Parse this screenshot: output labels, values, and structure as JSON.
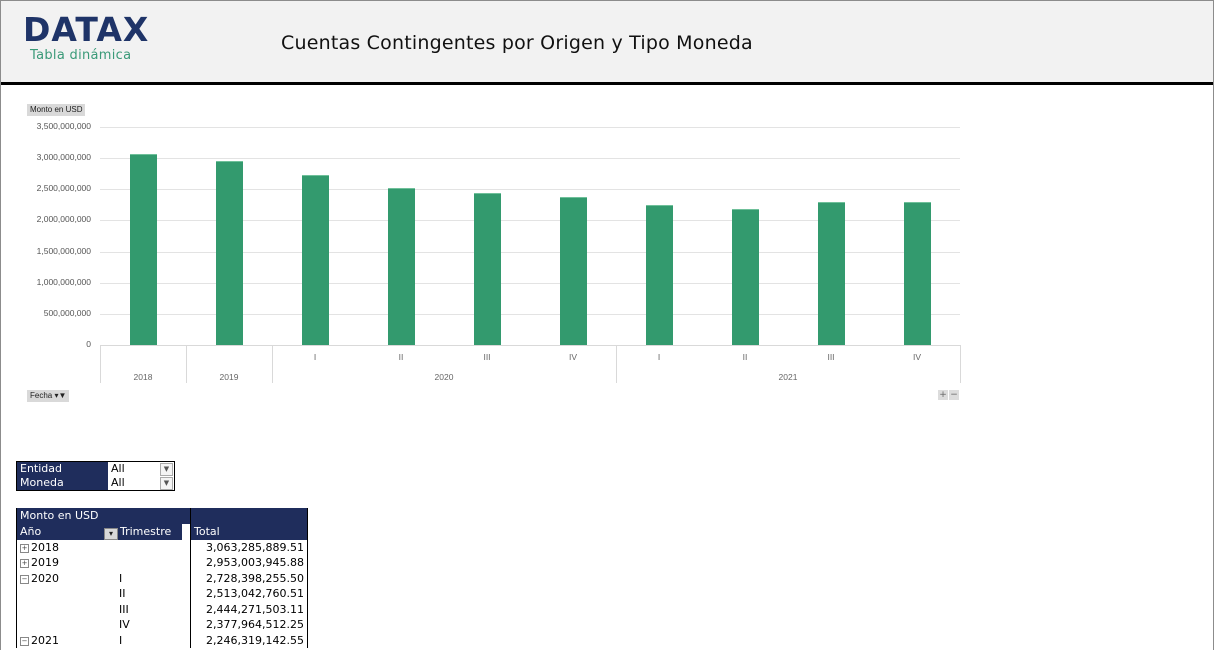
{
  "header": {
    "logo": "DATAX",
    "logo_subtitle": "Tabla dinámica",
    "title": "Cuentas Contingentes por Origen y Tipo Moneda"
  },
  "chart": {
    "value_field_button": "Monto en USD",
    "axis_field_button": "Fecha",
    "zoom_in": "+",
    "zoom_out": "−",
    "y_ticks": [
      "3,500,000,000",
      "3,000,000,000",
      "2,500,000,000",
      "2,000,000,000",
      "1,500,000,000",
      "1,000,000,000",
      "500,000,000",
      "0"
    ],
    "bar_color": "#339a6e"
  },
  "chart_data": {
    "type": "bar",
    "title": "",
    "ylabel": "Monto en USD",
    "xlabel": "Fecha",
    "ylim": [
      0,
      3500000000
    ],
    "grid": true,
    "categories": [
      "2018",
      "2019",
      "2020 I",
      "2020 II",
      "2020 III",
      "2020 IV",
      "2021 I",
      "2021 II",
      "2021 III",
      "2021 IV"
    ],
    "category_groups": [
      {
        "label": "2018",
        "subs": [
          ""
        ]
      },
      {
        "label": "2019",
        "subs": [
          ""
        ]
      },
      {
        "label": "2020",
        "subs": [
          "I",
          "II",
          "III",
          "IV"
        ]
      },
      {
        "label": "2021",
        "subs": [
          "I",
          "II",
          "III",
          "IV"
        ]
      }
    ],
    "values": [
      3063285889.51,
      2953003945.88,
      2728398255.5,
      2513042760.51,
      2444271503.11,
      2377964512.25,
      2246319142.55,
      2190000000,
      2295000000,
      2295000000
    ]
  },
  "filters": [
    {
      "label": "Entidad",
      "value": "All"
    },
    {
      "label": "Moneda",
      "value": "All"
    }
  ],
  "pivot": {
    "value_header": "Monto en USD",
    "col_year": "Año",
    "col_quarter": "Trimestre",
    "col_total": "Total",
    "rows": [
      {
        "year": "2018",
        "expander": "+",
        "quarter": "",
        "total": "3,063,285,889.51"
      },
      {
        "year": "2019",
        "expander": "+",
        "quarter": "",
        "total": "2,953,003,945.88"
      },
      {
        "year": "2020",
        "expander": "−",
        "quarter": "I",
        "total": "2,728,398,255.50"
      },
      {
        "year": "",
        "expander": "",
        "quarter": "II",
        "total": "2,513,042,760.51"
      },
      {
        "year": "",
        "expander": "",
        "quarter": "III",
        "total": "2,444,271,503.11"
      },
      {
        "year": "",
        "expander": "",
        "quarter": "IV",
        "total": "2,377,964,512.25"
      },
      {
        "year": "2021",
        "expander": "−",
        "quarter": "I",
        "total": "2,246,319,142.55"
      }
    ]
  }
}
